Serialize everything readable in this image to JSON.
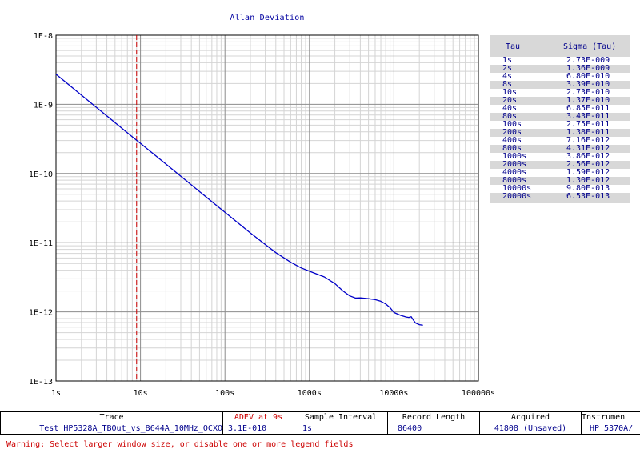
{
  "chart_data": {
    "type": "line",
    "title": "Allan Deviation",
    "xscale": "log",
    "yscale": "log",
    "xlim": [
      1,
      100000
    ],
    "ylim": [
      1e-13,
      1e-08
    ],
    "x_tick_labels": [
      "1s",
      "10s",
      "100s",
      "1000s",
      "10000s",
      "100000s"
    ],
    "y_tick_labels": [
      "1E-8",
      "1E-9",
      "1E-10",
      "1E-11",
      "1E-12",
      "1E-13"
    ],
    "grid": true,
    "marker_line": {
      "x": 9,
      "label": "ADEV at 9s",
      "color": "#cc0000",
      "style": "dashed"
    },
    "series": [
      {
        "color": "#0000c8",
        "x": [
          1,
          2,
          4,
          8,
          10,
          20,
          40,
          80,
          100,
          200,
          400,
          600,
          800,
          1000,
          1500,
          2000,
          2500,
          3000,
          3500,
          4000,
          5000,
          6000,
          7000,
          8000,
          9000,
          10000,
          12000,
          14000,
          15000,
          16000,
          17000,
          18000,
          20000,
          22000
        ],
        "y": [
          2.73e-09,
          1.36e-09,
          6.8e-10,
          3.39e-10,
          2.73e-10,
          1.37e-10,
          6.85e-11,
          3.43e-11,
          2.75e-11,
          1.38e-11,
          7.16e-12,
          5.2e-12,
          4.31e-12,
          3.86e-12,
          3.2e-12,
          2.56e-12,
          2e-12,
          1.7e-12,
          1.58e-12,
          1.59e-12,
          1.55e-12,
          1.5e-12,
          1.42e-12,
          1.3e-12,
          1.15e-12,
          9.8e-13,
          8.9e-13,
          8.4e-13,
          8.3e-13,
          8.5e-13,
          7.6e-13,
          6.9e-13,
          6.53e-13,
          6.4e-13
        ]
      }
    ]
  },
  "legend": {
    "header_tau": "Tau",
    "header_sigma": "Sigma (Tau)",
    "rows": [
      {
        "tau": "1s",
        "sigma": "2.73E-009"
      },
      {
        "tau": "2s",
        "sigma": "1.36E-009"
      },
      {
        "tau": "4s",
        "sigma": "6.80E-010"
      },
      {
        "tau": "8s",
        "sigma": "3.39E-010"
      },
      {
        "tau": "10s",
        "sigma": "2.73E-010"
      },
      {
        "tau": "20s",
        "sigma": "1.37E-010"
      },
      {
        "tau": "40s",
        "sigma": "6.85E-011"
      },
      {
        "tau": "80s",
        "sigma": "3.43E-011"
      },
      {
        "tau": "100s",
        "sigma": "2.75E-011"
      },
      {
        "tau": "200s",
        "sigma": "1.38E-011"
      },
      {
        "tau": "400s",
        "sigma": "7.16E-012"
      },
      {
        "tau": "800s",
        "sigma": "4.31E-012"
      },
      {
        "tau": "1000s",
        "sigma": "3.86E-012"
      },
      {
        "tau": "2000s",
        "sigma": "2.56E-012"
      },
      {
        "tau": "4000s",
        "sigma": "1.59E-012"
      },
      {
        "tau": "8000s",
        "sigma": "1.30E-012"
      },
      {
        "tau": "10000s",
        "sigma": "9.80E-013"
      },
      {
        "tau": "20000s",
        "sigma": "6.53E-013"
      }
    ]
  },
  "info_table": {
    "headers": {
      "trace": "Trace",
      "adev": "ADEV at 9s",
      "interval": "Sample Interval",
      "length": "Record Length",
      "acquired": "Acquired",
      "instrument": "Instrumen"
    },
    "values": {
      "trace": "Test HP5328A_TBOut_vs_8644A_10MHz_OCXO",
      "adev": "3.1E-010",
      "interval": "1s",
      "length": "86400",
      "acquired": "41808 (Unsaved)",
      "instrument": "HP 5370A/"
    }
  },
  "warning": "Warning: Select larger window size, or disable one or more legend fields",
  "colors": {
    "trace": "#0000c8",
    "marker": "#cc0000",
    "title": "#0000a0",
    "legend_bg": "#d8d8d8"
  }
}
